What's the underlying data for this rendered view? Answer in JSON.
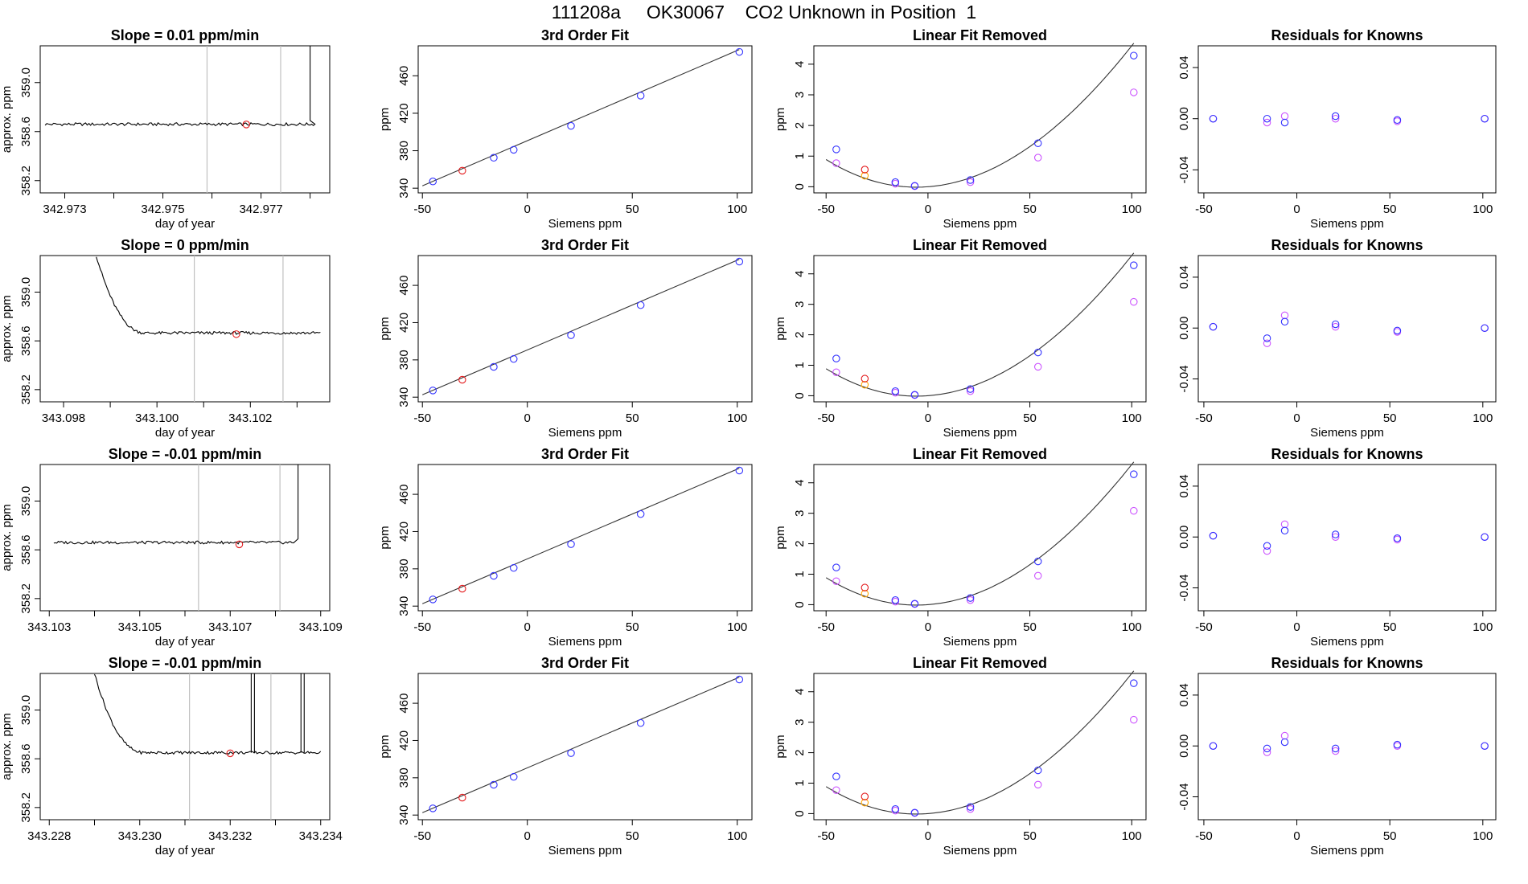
{
  "page_title": "111208a     OK30067    CO2 Unknown in Position  1",
  "colors": {
    "axis": "#000000",
    "trace": "#000000",
    "gridline": "#c0c0c0",
    "unknown_point": "#e41a1c",
    "known_point": "#3333ff",
    "residual_point": "#cc55ff",
    "orange_point": "#ffa500",
    "fit_line": "#333333"
  },
  "chart_data": [
    {
      "type": "line",
      "panel": "timeseries",
      "row": 1,
      "title": "Slope =  0.01  ppm/min",
      "xlabel": "day of year",
      "ylabel": "approx. ppm",
      "xlim": [
        342.9725,
        342.9784
      ],
      "ylim": [
        358.1,
        359.3
      ],
      "xticks": [
        342.973,
        342.974,
        342.975,
        342.976,
        342.977,
        342.978
      ],
      "xtick_labels": [
        "342.973",
        "",
        "342.975",
        "",
        "342.977",
        ""
      ],
      "yticks": [
        358.2,
        358.6,
        359.0
      ],
      "ytick_labels": [
        "358.2",
        "358.6",
        "359.0"
      ],
      "x_start": 342.9726,
      "x_end": 342.9781,
      "trace_start": null,
      "trace_spike": [
        342.978,
        359.3
      ],
      "base": 358.66,
      "noise": 0.012,
      "spikes": [],
      "vlines": [
        342.9759,
        342.9774
      ],
      "unknown_point": [
        342.9767,
        358.658
      ]
    },
    {
      "type": "line",
      "panel": "timeseries",
      "row": 2,
      "title": "Slope =  0  ppm/min",
      "xlabel": "day of year",
      "ylabel": "approx. ppm",
      "xlim": [
        343.0975,
        343.1037
      ],
      "ylim": [
        358.1,
        359.3
      ],
      "xticks": [
        343.098,
        343.099,
        343.1,
        343.101,
        343.102,
        343.103
      ],
      "xtick_labels": [
        "343.098",
        "",
        "343.100",
        "",
        "343.102",
        ""
      ],
      "yticks": [
        358.2,
        358.6,
        359.0
      ],
      "ytick_labels": [
        "358.2",
        "358.6",
        "359.0"
      ],
      "x_start": 343.0987,
      "x_end": 343.1035,
      "trace_start": [
        343.0987,
        359.3
      ],
      "trace_spike": null,
      "base": 358.665,
      "noise": 0.012,
      "spikes": [],
      "vlines": [
        343.1008,
        343.1027
      ],
      "unknown_point": [
        343.1017,
        358.655
      ]
    },
    {
      "type": "line",
      "panel": "timeseries",
      "row": 3,
      "title": "Slope =  -0.01  ppm/min",
      "xlabel": "day of year",
      "ylabel": "approx. ppm",
      "xlim": [
        343.1028,
        343.1092
      ],
      "ylim": [
        358.1,
        359.3
      ],
      "xticks": [
        343.103,
        343.104,
        343.105,
        343.106,
        343.107,
        343.108,
        343.109
      ],
      "xtick_labels": [
        "343.103",
        "",
        "343.105",
        "",
        "343.107",
        "",
        "343.109"
      ],
      "yticks": [
        358.2,
        358.6,
        359.0
      ],
      "ytick_labels": [
        "358.2",
        "358.6",
        "359.0"
      ],
      "x_start": 343.1031,
      "x_end": 343.1084,
      "trace_start": null,
      "trace_spike": [
        343.1085,
        359.3
      ],
      "base": 358.66,
      "noise": 0.012,
      "spikes": [],
      "vlines": [
        343.1063,
        343.1081
      ],
      "unknown_point": [
        343.1072,
        358.645
      ]
    },
    {
      "type": "line",
      "panel": "timeseries",
      "row": 4,
      "title": "Slope =  -0.01  ppm/min",
      "xlabel": "day of year",
      "ylabel": "approx. ppm",
      "xlim": [
        343.2278,
        343.2342
      ],
      "ylim": [
        358.1,
        359.3
      ],
      "xticks": [
        343.228,
        343.229,
        343.23,
        343.231,
        343.232,
        343.233,
        343.234
      ],
      "xtick_labels": [
        "343.228",
        "",
        "343.230",
        "",
        "343.232",
        "",
        "343.234"
      ],
      "yticks": [
        358.2,
        358.6,
        359.0
      ],
      "ytick_labels": [
        "358.2",
        "358.6",
        "359.0"
      ],
      "x_start": 343.229,
      "x_end": 343.234,
      "trace_start": [
        343.229,
        359.3
      ],
      "trace_spike": null,
      "base": 358.65,
      "noise": 0.012,
      "spikes": [
        343.2325,
        343.2336
      ],
      "vlines": [
        343.2311,
        343.2329
      ],
      "unknown_point": [
        343.232,
        358.645
      ]
    },
    {
      "type": "scatter",
      "panel": "fit",
      "rows": [
        1,
        2,
        3,
        4
      ],
      "title": "3rd Order Fit",
      "xlabel": "Siemens ppm",
      "ylabel": "ppm",
      "xlim": [
        -52,
        107
      ],
      "ylim": [
        335,
        492
      ],
      "xticks": [
        -50,
        0,
        50,
        100
      ],
      "yticks": [
        340,
        380,
        420,
        460
      ],
      "line": [
        [
          -50,
          342.5
        ],
        [
          101,
          488
        ]
      ],
      "known_points": [
        [
          -45,
          347.2
        ],
        [
          -16,
          372.5
        ],
        [
          -6.5,
          381
        ],
        [
          20.8,
          406.5
        ],
        [
          54,
          438.8
        ],
        [
          101,
          485.5
        ]
      ],
      "unknown_point": [
        -31,
        358.7
      ]
    },
    {
      "type": "scatter",
      "panel": "linear_removed",
      "rows": [
        1,
        2,
        3,
        4
      ],
      "title": "Linear Fit Removed",
      "xlabel": "Siemens ppm",
      "ylabel": "ppm",
      "xlim": [
        -56,
        107
      ],
      "ylim": [
        -0.2,
        4.6
      ],
      "xticks": [
        -50,
        0,
        50,
        100
      ],
      "yticks": [
        0,
        1,
        2,
        3,
        4
      ],
      "curve_coefficients": {
        "c0": 0.0,
        "c1": 0.005,
        "c2": 0.00044,
        "c3": -3e-07,
        "x_start": -50,
        "x_end": 101
      },
      "known_points": [
        [
          -45,
          1.22
        ],
        [
          -16,
          0.15
        ],
        [
          -6.5,
          0.03
        ],
        [
          20.8,
          0.22
        ],
        [
          54,
          1.42
        ],
        [
          101,
          4.28
        ]
      ],
      "residual_points": [
        [
          -45,
          0.77
        ],
        [
          -16,
          0.1
        ],
        [
          -6.5,
          0.02
        ],
        [
          20.8,
          0.15
        ],
        [
          54,
          0.95
        ],
        [
          101,
          3.08
        ]
      ],
      "unknown_points": [
        [
          -31,
          0.56
        ]
      ],
      "orange_points": [
        [
          -31,
          0.36
        ]
      ]
    },
    {
      "type": "scatter",
      "panel": "residuals",
      "rows": [
        1,
        2,
        3,
        4
      ],
      "title": "Residuals for Knowns",
      "xlabel": "Siemens ppm",
      "ylabel": "",
      "xlim": [
        -53,
        107
      ],
      "ylim": [
        -0.058,
        0.057
      ],
      "xticks": [
        -50,
        0,
        50,
        100
      ],
      "yticks": [
        -0.04,
        0.0,
        0.04
      ],
      "ytick_labels": [
        "-0.04",
        "0.00",
        "0.04"
      ],
      "series_by_row": [
        {
          "row": 1,
          "blue": [
            [
              -45,
              0.0
            ],
            [
              -16,
              0.0
            ],
            [
              -6.5,
              -0.003
            ],
            [
              20.8,
              0.002
            ],
            [
              54,
              -0.001
            ],
            [
              101,
              0.0
            ]
          ],
          "purple": [
            [
              -45,
              0.0
            ],
            [
              -16,
              -0.003
            ],
            [
              -6.5,
              0.002
            ],
            [
              20.8,
              0.0
            ],
            [
              54,
              -0.002
            ],
            [
              101,
              0.0
            ]
          ]
        },
        {
          "row": 2,
          "blue": [
            [
              -45,
              0.001
            ],
            [
              -16,
              -0.008
            ],
            [
              -6.5,
              0.005
            ],
            [
              20.8,
              0.003
            ],
            [
              54,
              -0.002
            ],
            [
              101,
              0.0
            ]
          ],
          "purple": [
            [
              -45,
              0.001
            ],
            [
              -16,
              -0.012
            ],
            [
              -6.5,
              0.01
            ],
            [
              20.8,
              0.001
            ],
            [
              54,
              -0.003
            ],
            [
              101,
              0.0
            ]
          ]
        },
        {
          "row": 3,
          "blue": [
            [
              -45,
              0.001
            ],
            [
              -16,
              -0.007
            ],
            [
              -6.5,
              0.005
            ],
            [
              20.8,
              0.002
            ],
            [
              54,
              -0.001
            ],
            [
              101,
              0.0
            ]
          ],
          "purple": [
            [
              -45,
              0.001
            ],
            [
              -16,
              -0.011
            ],
            [
              -6.5,
              0.01
            ],
            [
              20.8,
              0.0
            ],
            [
              54,
              -0.002
            ],
            [
              101,
              0.0
            ]
          ]
        },
        {
          "row": 4,
          "blue": [
            [
              -45,
              0.0
            ],
            [
              -16,
              -0.002
            ],
            [
              -6.5,
              0.003
            ],
            [
              20.8,
              -0.002
            ],
            [
              54,
              0.001
            ],
            [
              101,
              0.0
            ]
          ],
          "purple": [
            [
              -45,
              0.0
            ],
            [
              -16,
              -0.005
            ],
            [
              -6.5,
              0.008
            ],
            [
              20.8,
              -0.004
            ],
            [
              54,
              0.0
            ],
            [
              101,
              0.0
            ]
          ]
        }
      ]
    }
  ]
}
